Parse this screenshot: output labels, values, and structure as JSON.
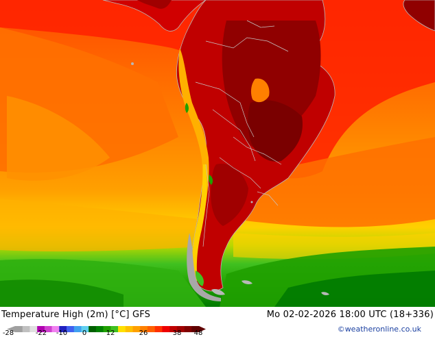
{
  "map": {
    "title": "Temperature High (2m) [°C] GFS",
    "valid_time": "Mo 02-02-2026 18:00 UTC (18+336)",
    "credit": "©weatheronline.co.uk",
    "legend": {
      "tick_labels": [
        "-28",
        "-22",
        "-10",
        "0",
        "12",
        "26",
        "38",
        "48"
      ],
      "colors": [
        "#a0a0a0",
        "#c0c0c0",
        "#e0e0e0",
        "#b000b0",
        "#d040d0",
        "#f080f0",
        "#2020c0",
        "#4060f0",
        "#40a0f0",
        "#60d0f0",
        "#006000",
        "#008000",
        "#20a000",
        "#40c020",
        "#ffe000",
        "#ffc000",
        "#ffa000",
        "#ff8000",
        "#ff6000",
        "#ff3000",
        "#ee0000",
        "#c00000",
        "#a00000",
        "#800000",
        "#600000"
      ]
    }
  }
}
